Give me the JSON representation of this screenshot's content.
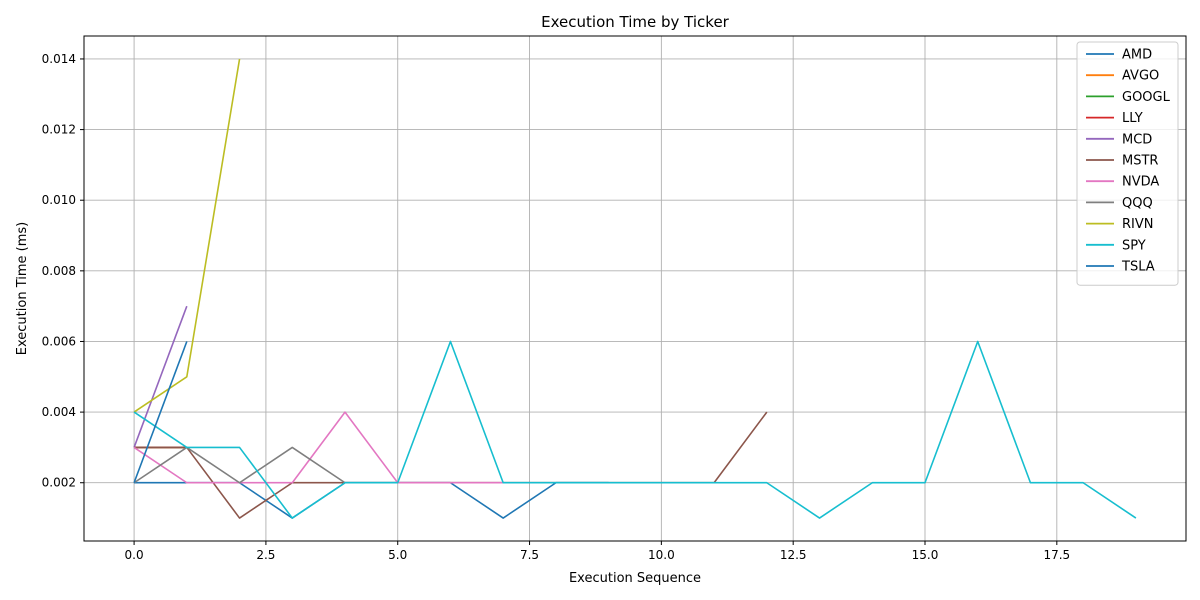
{
  "chart_data": {
    "type": "line",
    "title": "Execution Time by Ticker",
    "xlabel": "Execution Sequence",
    "ylabel": "Execution Time (ms)",
    "xlim": [
      -0.95,
      19.95
    ],
    "ylim": [
      0.00035,
      0.01465
    ],
    "xticks": [
      0,
      2.5,
      5,
      7.5,
      10,
      12.5,
      15,
      17.5
    ],
    "xtick_labels": [
      "0.0",
      "2.5",
      "5.0",
      "7.5",
      "10.0",
      "12.5",
      "15.0",
      "17.5"
    ],
    "yticks": [
      0.002,
      0.004,
      0.006,
      0.008,
      0.01,
      0.012,
      0.014
    ],
    "ytick_labels": [
      "0.002",
      "0.004",
      "0.006",
      "0.008",
      "0.010",
      "0.012",
      "0.014"
    ],
    "grid": true,
    "legend_position": "top-right",
    "series": [
      {
        "name": "AMD",
        "color": "#1f77b4",
        "x": [
          0,
          1,
          2,
          3,
          4,
          5,
          6,
          7,
          8,
          9
        ],
        "y": [
          0.002,
          0.002,
          0.002,
          0.001,
          0.002,
          0.002,
          0.002,
          0.001,
          0.002,
          0.002
        ]
      },
      {
        "name": "AVGO",
        "color": "#ff7f0e",
        "x": [
          0,
          1
        ],
        "y": [
          0.003,
          0.003
        ]
      },
      {
        "name": "GOOGL",
        "color": "#2ca02c",
        "x": [
          0,
          1
        ],
        "y": [
          0.003,
          0.003
        ]
      },
      {
        "name": "LLY",
        "color": "#d62728",
        "x": [
          0,
          1
        ],
        "y": [
          0.003,
          0.003
        ]
      },
      {
        "name": "MCD",
        "color": "#9467bd",
        "x": [
          0,
          1
        ],
        "y": [
          0.003,
          0.007
        ]
      },
      {
        "name": "MSTR",
        "color": "#8c564b",
        "x": [
          0,
          1,
          2,
          3,
          4,
          5,
          6,
          7,
          8,
          9,
          10,
          11,
          12
        ],
        "y": [
          0.003,
          0.003,
          0.001,
          0.002,
          0.002,
          0.002,
          0.002,
          0.002,
          0.002,
          0.002,
          0.002,
          0.002,
          0.004
        ]
      },
      {
        "name": "NVDA",
        "color": "#e377c2",
        "x": [
          0,
          1,
          2,
          3,
          4,
          5,
          6,
          7
        ],
        "y": [
          0.003,
          0.002,
          0.002,
          0.002,
          0.004,
          0.002,
          0.002,
          0.002
        ]
      },
      {
        "name": "QQQ",
        "color": "#7f7f7f",
        "x": [
          0,
          1,
          2,
          3,
          4
        ],
        "y": [
          0.002,
          0.003,
          0.002,
          0.003,
          0.002
        ]
      },
      {
        "name": "RIVN",
        "color": "#bcbd22",
        "x": [
          0,
          1,
          2
        ],
        "y": [
          0.004,
          0.005,
          0.014
        ]
      },
      {
        "name": "SPY",
        "color": "#17becf",
        "x": [
          0,
          1,
          2,
          3,
          4,
          5,
          6,
          7,
          8,
          9,
          10,
          11,
          12,
          13,
          14,
          15,
          16,
          17,
          18,
          19
        ],
        "y": [
          0.004,
          0.003,
          0.003,
          0.001,
          0.002,
          0.002,
          0.006,
          0.002,
          0.002,
          0.002,
          0.002,
          0.002,
          0.002,
          0.001,
          0.002,
          0.002,
          0.006,
          0.002,
          0.002,
          0.001
        ]
      },
      {
        "name": "TSLA",
        "color": "#1f77b4",
        "x": [
          0,
          1
        ],
        "y": [
          0.002,
          0.006
        ]
      }
    ]
  }
}
